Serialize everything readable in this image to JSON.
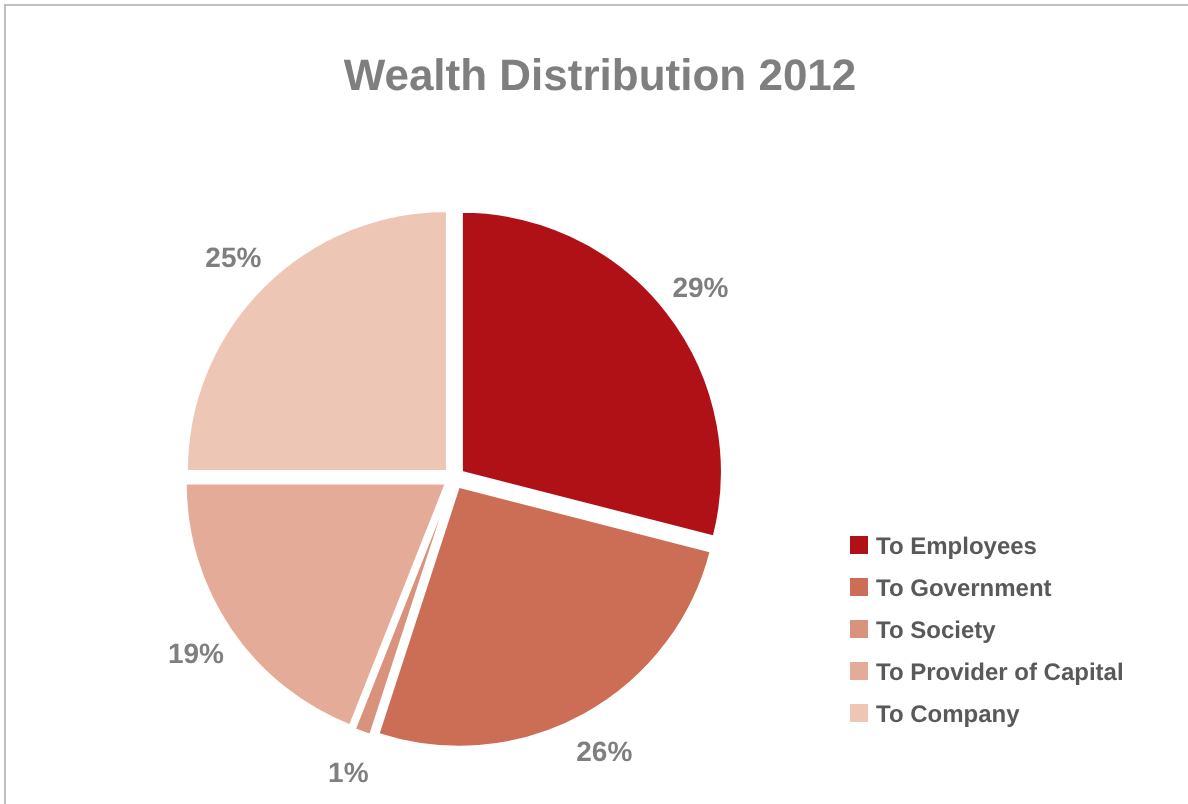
{
  "chart_data": {
    "type": "pie",
    "title": "Wealth Distribution 2012",
    "categories": [
      "To Employees",
      "To Government",
      "To Society",
      "To Provider of Capital",
      "To Company"
    ],
    "values": [
      29,
      26,
      1,
      19,
      25
    ],
    "value_labels": [
      "29%",
      "26%",
      "1%",
      "19%",
      "25%"
    ],
    "colors": [
      "#b01117",
      "#cc6e55",
      "#d9927c",
      "#e4ac98",
      "#eec6b6"
    ],
    "legend": "right"
  }
}
